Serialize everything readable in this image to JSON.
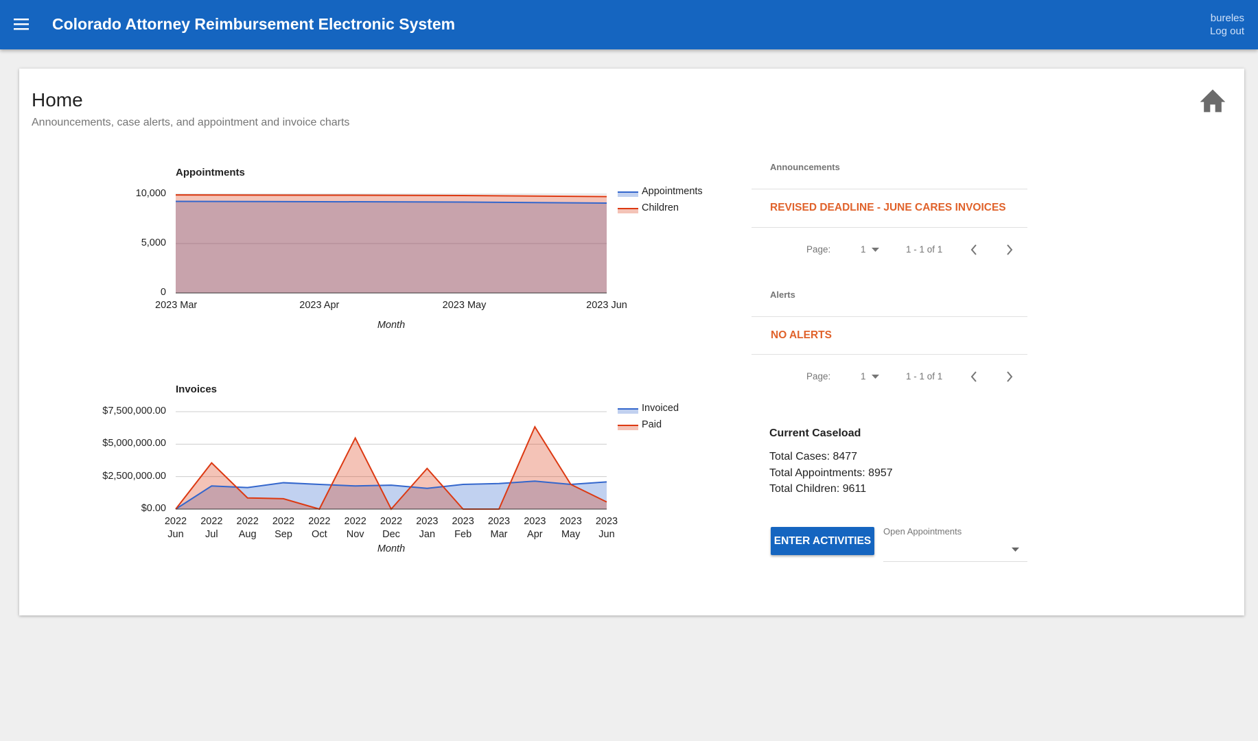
{
  "header": {
    "title": "Colorado Attorney Reimbursement Electronic System",
    "user": "bureles",
    "logout": "Log out"
  },
  "page": {
    "title": "Home",
    "subtitle": "Announcements, case alerts, and appointment and invoice charts"
  },
  "chart_data": [
    {
      "type": "area",
      "title": "Appointments",
      "x_label": "Month",
      "categories": [
        "2023 Mar",
        "2023 Apr",
        "2023 May",
        "2023 Jun"
      ],
      "series": [
        {
          "name": "Appointments",
          "color": "#3366cc",
          "values": [
            9270,
            9240,
            9200,
            9100
          ]
        },
        {
          "name": "Children",
          "color": "#dc3912",
          "values": [
            9920,
            9900,
            9860,
            9760
          ]
        }
      ],
      "ylim": [
        0,
        10000
      ],
      "yticks": [
        0,
        {
          "value": 5000,
          "label": "5,000"
        },
        {
          "value": 10000,
          "label": "10,000"
        }
      ],
      "grid": true,
      "legend": "right"
    },
    {
      "type": "area",
      "title": "Invoices",
      "x_label": "Month",
      "categories": [
        "2022 Jun",
        "2022 Jul",
        "2022 Aug",
        "2022 Sep",
        "2022 Oct",
        "2022 Nov",
        "2022 Dec",
        "2023 Jan",
        "2023 Feb",
        "2023 Mar",
        "2023 Apr",
        "2023 May",
        "2023 Jun"
      ],
      "series": [
        {
          "name": "Invoiced",
          "color": "#3366cc",
          "values": [
            0,
            1780000,
            1660000,
            2030000,
            1900000,
            1780000,
            1840000,
            1600000,
            1900000,
            1970000,
            2150000,
            1900000,
            2090000
          ]
        },
        {
          "name": "Paid",
          "color": "#dc3912",
          "values": [
            0,
            3560000,
            860000,
            800000,
            0,
            5470000,
            0,
            3130000,
            0,
            0,
            6330000,
            1900000,
            550000
          ]
        }
      ],
      "ylim": [
        0,
        7500000
      ],
      "yticks": [
        {
          "value": 0,
          "label": "$0.00"
        },
        {
          "value": 2500000,
          "label": "$2,500,000.00"
        },
        {
          "value": 5000000,
          "label": "$5,000,000.00"
        },
        {
          "value": 7500000,
          "label": "$7,500,000.00"
        }
      ],
      "grid": true,
      "legend": "right"
    }
  ],
  "announcements": {
    "title": "Announcements",
    "items": [
      "REVISED DEADLINE - JUNE CARES INVOICES"
    ],
    "pager": {
      "label": "Page:",
      "page": "1",
      "range": "1 - 1 of 1"
    }
  },
  "alerts": {
    "title": "Alerts",
    "items": [
      "NO ALERTS"
    ],
    "pager": {
      "label": "Page:",
      "page": "1",
      "range": "1 - 1 of 1"
    }
  },
  "caseload": {
    "title": "Current Caseload",
    "lines": [
      "Total Cases: 8477",
      "Total Appointments: 8957",
      "Total Children: 9611"
    ]
  },
  "actions": {
    "button": "ENTER ACTIVITIES",
    "select_label": "Open Appointments"
  }
}
